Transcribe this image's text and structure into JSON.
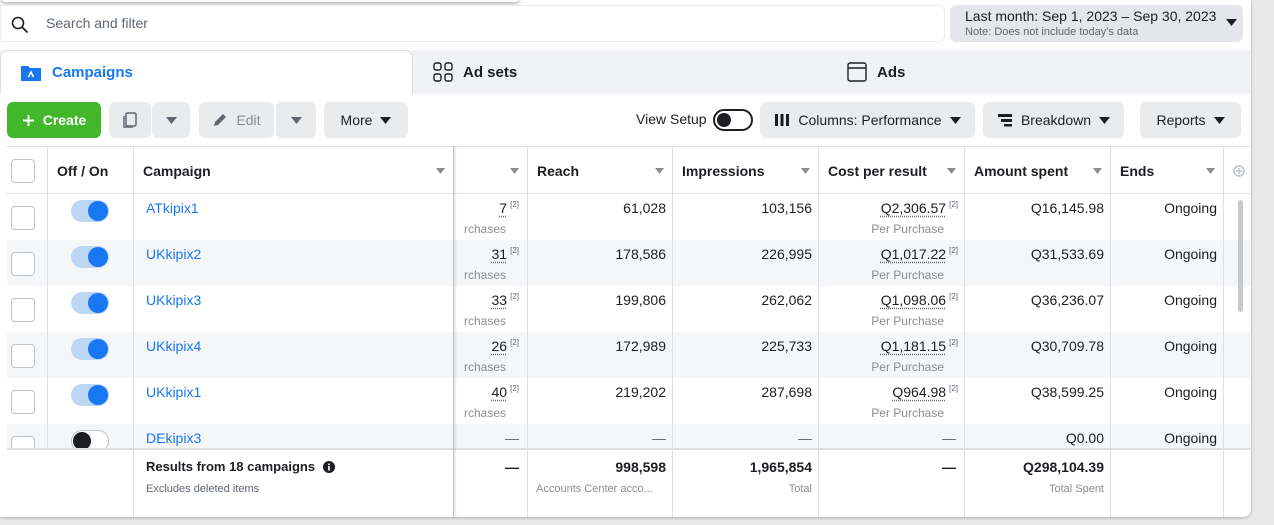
{
  "search": {
    "placeholder": "Search and filter"
  },
  "date_range": {
    "label": "Last month: Sep 1, 2023 – Sep 30, 2023",
    "note": "Note: Does not include today's data"
  },
  "tabs": [
    {
      "label": "Campaigns",
      "icon": "folder-icon",
      "active": true
    },
    {
      "label": "Ad sets",
      "icon": "grid-icon",
      "active": false
    },
    {
      "label": "Ads",
      "icon": "ad-frame-icon",
      "active": false
    }
  ],
  "toolbar": {
    "create": "Create",
    "edit": "Edit",
    "more": "More",
    "view_setup": "View Setup",
    "columns": "Columns: Performance",
    "breakdown": "Breakdown",
    "reports": "Reports"
  },
  "table": {
    "headers": {
      "off_on": "Off / On",
      "campaign": "Campaign",
      "reach": "Reach",
      "impressions": "Impressions",
      "cost_per_result": "Cost per result",
      "amount_spent": "Amount spent",
      "ends": "Ends"
    },
    "rows": [
      {
        "on": true,
        "name": "ATkipix1",
        "results": "7",
        "results_sub": "rchases",
        "reach": "61,028",
        "impressions": "103,156",
        "cpr": "Q2,306.57",
        "cpr_sub": "Per Purchase",
        "spent": "Q16,145.98",
        "ends": "Ongoing"
      },
      {
        "on": true,
        "name": "UKkipix2",
        "results": "31",
        "results_sub": "rchases",
        "reach": "178,586",
        "impressions": "226,995",
        "cpr": "Q1,017.22",
        "cpr_sub": "Per Purchase",
        "spent": "Q31,533.69",
        "ends": "Ongoing"
      },
      {
        "on": true,
        "name": "UKkipix3",
        "results": "33",
        "results_sub": "rchases",
        "reach": "199,806",
        "impressions": "262,062",
        "cpr": "Q1,098.06",
        "cpr_sub": "Per Purchase",
        "spent": "Q36,236.07",
        "ends": "Ongoing"
      },
      {
        "on": true,
        "name": "UKkipix4",
        "results": "26",
        "results_sub": "rchases",
        "reach": "172,989",
        "impressions": "225,733",
        "cpr": "Q1,181.15",
        "cpr_sub": "Per Purchase",
        "spent": "Q30,709.78",
        "ends": "Ongoing"
      },
      {
        "on": true,
        "name": "UKkipix1",
        "results": "40",
        "results_sub": "rchases",
        "reach": "219,202",
        "impressions": "287,698",
        "cpr": "Q964.98",
        "cpr_sub": "Per Purchase",
        "spent": "Q38,599.25",
        "ends": "Ongoing"
      },
      {
        "on": false,
        "name": "DEkipix3",
        "results": "—",
        "results_sub": "",
        "reach": "—",
        "impressions": "—",
        "cpr": "—",
        "cpr_sub": "",
        "spent": "Q0.00",
        "ends": "Ongoing"
      }
    ],
    "footnote_marker": "[2]",
    "summary": {
      "title": "Results from 18 campaigns",
      "subtitle": "Excludes deleted items",
      "results": "—",
      "reach": "998,598",
      "reach_sub": "Accounts Center acco...",
      "impressions": "1,965,854",
      "impressions_sub": "Total",
      "cpr": "—",
      "spent": "Q298,104.39",
      "spent_sub": "Total Spent"
    }
  },
  "colors": {
    "accent": "#1877f2",
    "create_green": "#42b72a",
    "toggle_on_track": "#bcd6f6"
  }
}
